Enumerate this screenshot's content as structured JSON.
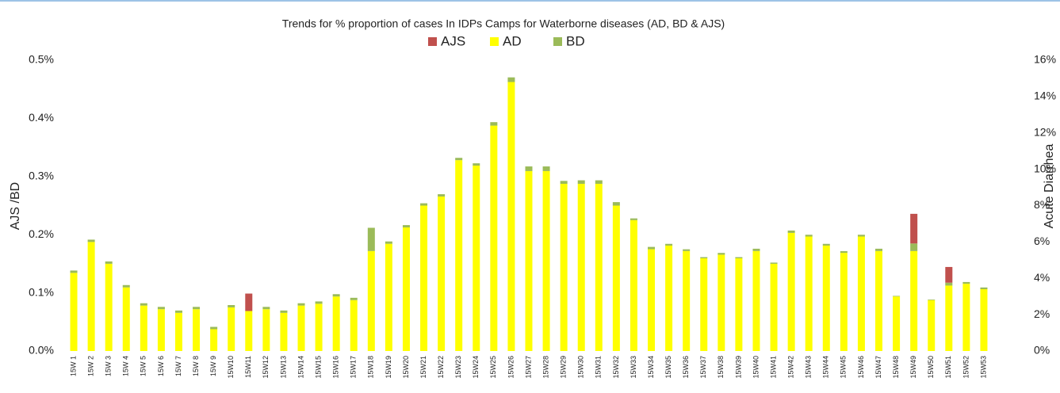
{
  "chart_data": {
    "type": "bar",
    "title": "Trends for % proportion of cases In IDPs Camps for Waterborne diseases (AD, BD & AJS)",
    "ylabel": "AJS /BD",
    "y2label": "Acute Diarrhea",
    "categories": [
      "15W 1",
      "15W 2",
      "15W 3",
      "15W 4",
      "15W 5",
      "15W 6",
      "15W 7",
      "15W 8",
      "15W 9",
      "15W10",
      "15W11",
      "15W12",
      "15W13",
      "15W14",
      "15W15",
      "15W16",
      "15W17",
      "15W18",
      "15W19",
      "15W20",
      "15W21",
      "15W22",
      "15W23",
      "15W24",
      "15W25",
      "15W26",
      "15W27",
      "15W28",
      "15W29",
      "15W30",
      "15W31",
      "15W32",
      "15W33",
      "15W34",
      "15W35",
      "15W36",
      "15W37",
      "15W38",
      "15W39",
      "15W40",
      "15W41",
      "15W42",
      "15W43",
      "15W44",
      "15W45",
      "15W46",
      "15W47",
      "15W48",
      "15W49",
      "15W50",
      "15W51",
      "15W52",
      "15W53"
    ],
    "series": [
      {
        "name": "AJS",
        "color": "#c0504d",
        "axis": "y",
        "values": [
          0,
          0,
          0,
          0,
          0,
          0,
          0,
          0,
          0,
          0,
          0.03,
          0,
          0,
          0,
          0,
          0,
          0,
          0,
          0,
          0,
          0,
          0,
          0,
          0,
          0,
          0,
          0,
          0,
          0,
          0,
          0,
          0,
          0,
          0,
          0,
          0,
          0,
          0,
          0,
          0,
          0,
          0,
          0,
          0,
          0,
          0,
          0,
          0,
          0.051,
          0,
          0.027,
          0,
          0
        ]
      },
      {
        "name": "AD",
        "color": "#ffff00",
        "axis": "y2",
        "values": [
          4.3,
          6.0,
          4.8,
          3.5,
          2.5,
          2.3,
          2.1,
          2.3,
          1.2,
          2.4,
          2.2,
          2.3,
          2.1,
          2.5,
          2.6,
          3.0,
          2.8,
          5.5,
          5.9,
          6.8,
          8.0,
          8.5,
          10.5,
          10.2,
          12.4,
          14.8,
          9.9,
          9.9,
          9.2,
          9.2,
          9.2,
          8.0,
          7.2,
          5.6,
          5.8,
          5.5,
          5.1,
          5.3,
          5.1,
          5.5,
          4.8,
          6.5,
          6.3,
          5.8,
          5.4,
          6.3,
          5.5,
          3.0,
          5.5,
          2.8,
          3.6,
          3.7,
          3.4
        ]
      },
      {
        "name": "BD",
        "color": "#9bbb59",
        "axis": "y",
        "values": [
          0.004,
          0.004,
          0.004,
          0.004,
          0.004,
          0.004,
          0.004,
          0.004,
          0.004,
          0.004,
          0,
          0.004,
          0.004,
          0.004,
          0.004,
          0.004,
          0.004,
          0.04,
          0.004,
          0.004,
          0.004,
          0.004,
          0.004,
          0.004,
          0.006,
          0.008,
          0.008,
          0.008,
          0.005,
          0.006,
          0.006,
          0.006,
          0.003,
          0.004,
          0.003,
          0.003,
          0.002,
          0.003,
          0.002,
          0.004,
          0.002,
          0.004,
          0.003,
          0.003,
          0.003,
          0.003,
          0.004,
          0.001,
          0.013,
          0.001,
          0.005,
          0.003,
          0.003
        ]
      }
    ],
    "ylim": [
      0,
      0.5
    ],
    "yticks": [
      {
        "value": 0,
        "label": "0.0%"
      },
      {
        "value": 0.1,
        "label": "0.1%"
      },
      {
        "value": 0.2,
        "label": "0.2%"
      },
      {
        "value": 0.3,
        "label": "0.3%"
      },
      {
        "value": 0.4,
        "label": "0.4%"
      },
      {
        "value": 0.5,
        "label": "0.5%"
      }
    ],
    "y2lim": [
      0,
      16
    ],
    "y2ticks": [
      {
        "value": 0,
        "label": "0%"
      },
      {
        "value": 2,
        "label": "2%"
      },
      {
        "value": 4,
        "label": "4%"
      },
      {
        "value": 6,
        "label": "6%"
      },
      {
        "value": 8,
        "label": "8%"
      },
      {
        "value": 10,
        "label": "10%"
      },
      {
        "value": 12,
        "label": "12%"
      },
      {
        "value": 14,
        "label": "14%"
      },
      {
        "value": 16,
        "label": "16%"
      }
    ],
    "grid": false,
    "legend": "top"
  }
}
